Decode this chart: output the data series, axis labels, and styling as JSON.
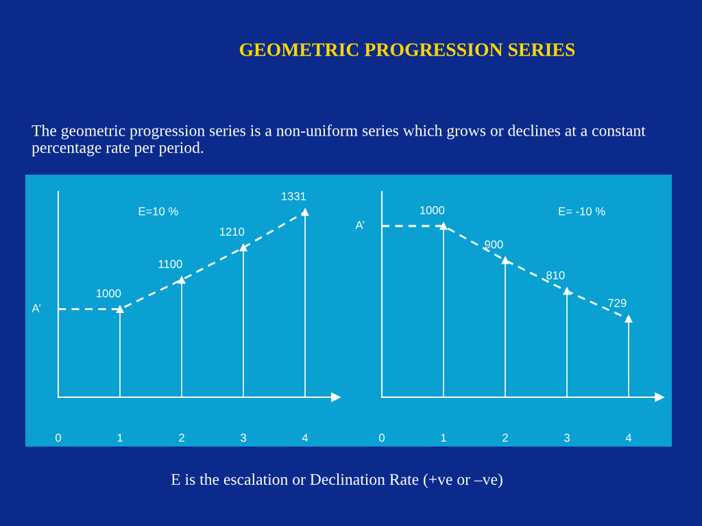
{
  "chart_data": [
    {
      "type": "lollipop",
      "title": "GEOMETRIC PROGRESSION SERIES",
      "subtitle": "The geometric progression series is a non-uniform series which grows or declines at a constant percentage rate per period.",
      "x": [
        0,
        1,
        2,
        3,
        4
      ],
      "xlim": [
        0,
        4.5
      ],
      "xticks": [
        0,
        1,
        2,
        3,
        4
      ],
      "ylim": [
        700,
        1400
      ],
      "tick_labels": "x",
      "series": [
        {
          "marker": "triangle",
          "color": "#ffffff",
          "values": [
            null,
            1000,
            1100,
            1210,
            1331
          ],
          "value_labels": [
            null,
            "1000",
            "1100",
            "1210",
            "1331"
          ]
        },
        {
          "type": "line",
          "color": "#ffffff",
          "line_style": "dashed",
          "values": [
            1000,
            1000,
            1100,
            1210,
            1331
          ]
        }
      ],
      "annotations": [
        {
          "text": "A’",
          "x": 0,
          "y": 1000
        },
        "E=10 %"
      ]
    },
    {
      "type": "lollipop",
      "x": [
        0,
        1,
        2,
        3,
        4
      ],
      "xlim": [
        0,
        4.5
      ],
      "xticks": [
        0,
        1,
        2,
        3,
        4
      ],
      "ylim": [
        500,
        1100
      ],
      "tick_labels": "x",
      "series": [
        {
          "marker": "triangle",
          "color": "#ffffff",
          "values": [
            null,
            1000,
            900,
            810,
            729
          ],
          "value_labels": [
            null,
            "1000",
            "900",
            "810",
            "729"
          ]
        },
        {
          "type": "line",
          "color": "#ffffff",
          "line_style": "dashed",
          "values": [
            1000,
            1000,
            900,
            810,
            729
          ]
        }
      ],
      "annotations": [
        {
          "text": "A’",
          "x": 0,
          "y": 1000
        },
        "E= -10 %",
        "E is the escalation or Declination Rate (+ve or –ve)"
      ]
    }
  ]
}
